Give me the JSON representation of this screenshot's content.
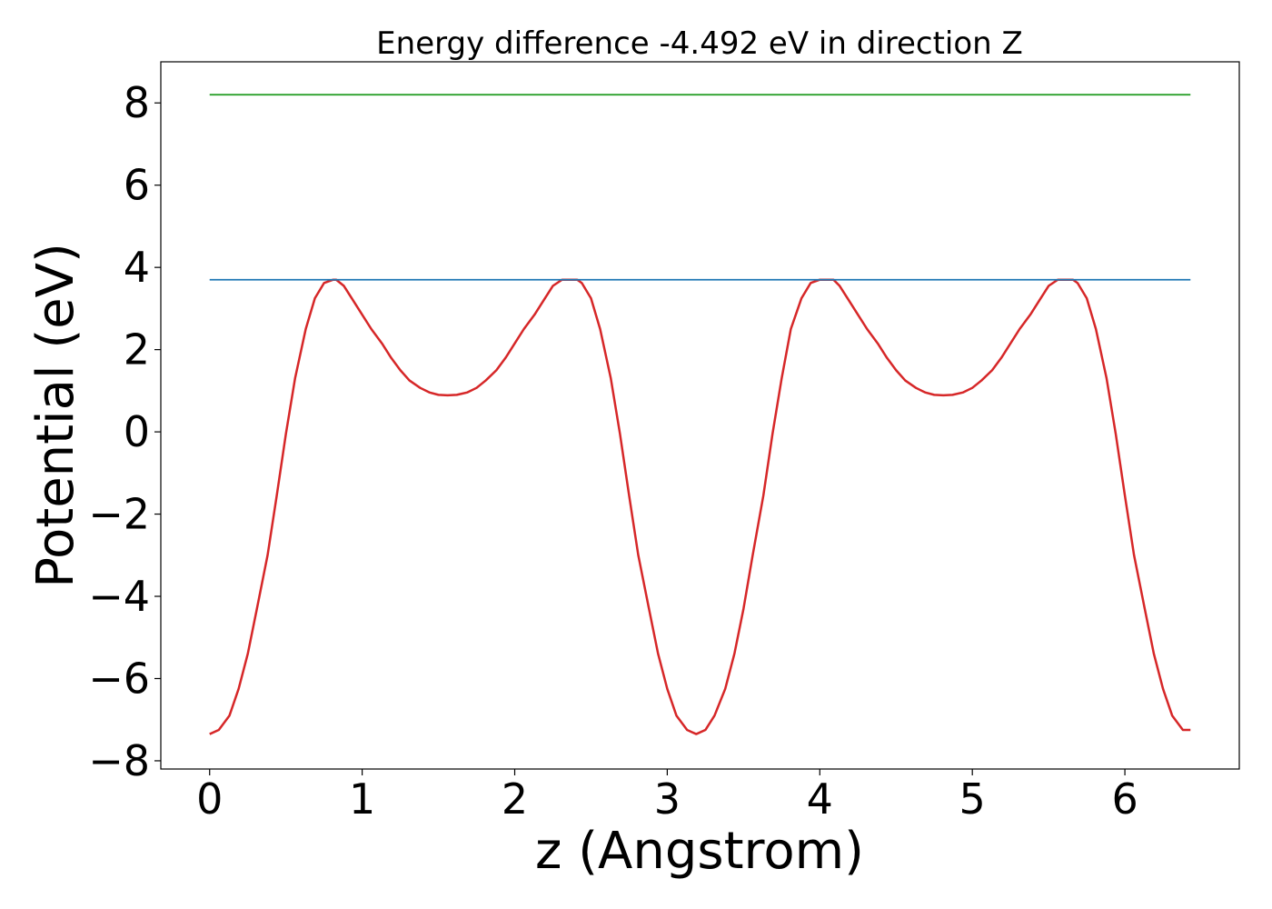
{
  "chart_data": {
    "type": "line",
    "title": "Energy difference -4.492 eV in direction Z",
    "xlabel": "z (Angstrom)",
    "ylabel": "Potential (eV)",
    "xlim": [
      -0.32,
      6.75
    ],
    "ylim": [
      -8.2,
      9.0
    ],
    "xticks": [
      0,
      1,
      2,
      3,
      4,
      5,
      6
    ],
    "yticks": [
      -8,
      -6,
      -4,
      -2,
      0,
      2,
      4,
      6,
      8
    ],
    "grid": false,
    "legend": "none",
    "series": [
      {
        "color": "#d62728",
        "x": [
          0.0,
          0.06,
          0.13,
          0.19,
          0.25,
          0.31,
          0.38,
          0.44,
          0.5,
          0.56,
          0.63,
          0.69,
          0.75,
          0.81,
          0.83,
          0.88,
          0.94,
          1.0,
          1.06,
          1.13,
          1.19,
          1.25,
          1.31,
          1.38,
          1.44,
          1.5,
          1.56,
          1.62,
          1.69,
          1.75,
          1.81,
          1.88,
          1.94,
          2.0,
          2.06,
          2.13,
          2.19,
          2.25,
          2.31,
          2.38,
          2.41,
          2.44,
          2.5,
          2.56,
          2.63,
          2.69,
          2.75,
          2.81,
          2.88,
          2.94,
          3.0,
          3.06,
          3.13,
          3.19,
          3.25,
          3.31,
          3.38,
          3.44,
          3.5,
          3.56,
          3.63,
          3.69,
          3.75,
          3.81,
          3.88,
          3.94,
          4.0,
          4.06,
          4.09,
          4.13,
          4.19,
          4.25,
          4.31,
          4.38,
          4.44,
          4.5,
          4.56,
          4.63,
          4.69,
          4.75,
          4.81,
          4.87,
          4.94,
          5.0,
          5.06,
          5.13,
          5.19,
          5.25,
          5.31,
          5.38,
          5.44,
          5.5,
          5.56,
          5.63,
          5.66,
          5.69,
          5.75,
          5.81,
          5.88,
          5.94,
          6.0,
          6.06,
          6.13,
          6.19,
          6.25,
          6.31,
          6.38,
          6.43
        ],
        "y": [
          -7.35,
          -7.25,
          -6.9,
          -6.25,
          -5.4,
          -4.3,
          -3.0,
          -1.55,
          -0.05,
          1.3,
          2.5,
          3.25,
          3.62,
          3.7,
          3.7,
          3.55,
          3.2,
          2.85,
          2.5,
          2.15,
          1.8,
          1.5,
          1.25,
          1.07,
          0.96,
          0.9,
          0.89,
          0.9,
          0.96,
          1.07,
          1.25,
          1.5,
          1.8,
          2.15,
          2.5,
          2.85,
          3.2,
          3.55,
          3.7,
          3.7,
          3.7,
          3.62,
          3.25,
          2.5,
          1.3,
          -0.05,
          -1.55,
          -3.0,
          -4.3,
          -5.4,
          -6.25,
          -6.9,
          -7.25,
          -7.35,
          -7.25,
          -6.9,
          -6.25,
          -5.4,
          -4.3,
          -3.0,
          -1.55,
          -0.05,
          1.3,
          2.5,
          3.25,
          3.62,
          3.7,
          3.7,
          3.7,
          3.55,
          3.2,
          2.85,
          2.5,
          2.15,
          1.8,
          1.5,
          1.25,
          1.07,
          0.96,
          0.9,
          0.89,
          0.9,
          0.96,
          1.07,
          1.25,
          1.5,
          1.8,
          2.15,
          2.5,
          2.85,
          3.2,
          3.55,
          3.7,
          3.7,
          3.7,
          3.62,
          3.25,
          2.5,
          1.3,
          -0.05,
          -1.55,
          -3.0,
          -4.3,
          -5.4,
          -6.25,
          -6.9,
          -7.25,
          -7.25
        ]
      },
      {
        "color": "#1f77b4",
        "x": [
          0.0,
          6.43
        ],
        "y": [
          3.7,
          3.7
        ]
      },
      {
        "color": "#2ca02c",
        "x": [
          0.0,
          6.43
        ],
        "y": [
          8.2,
          8.2
        ]
      }
    ]
  }
}
